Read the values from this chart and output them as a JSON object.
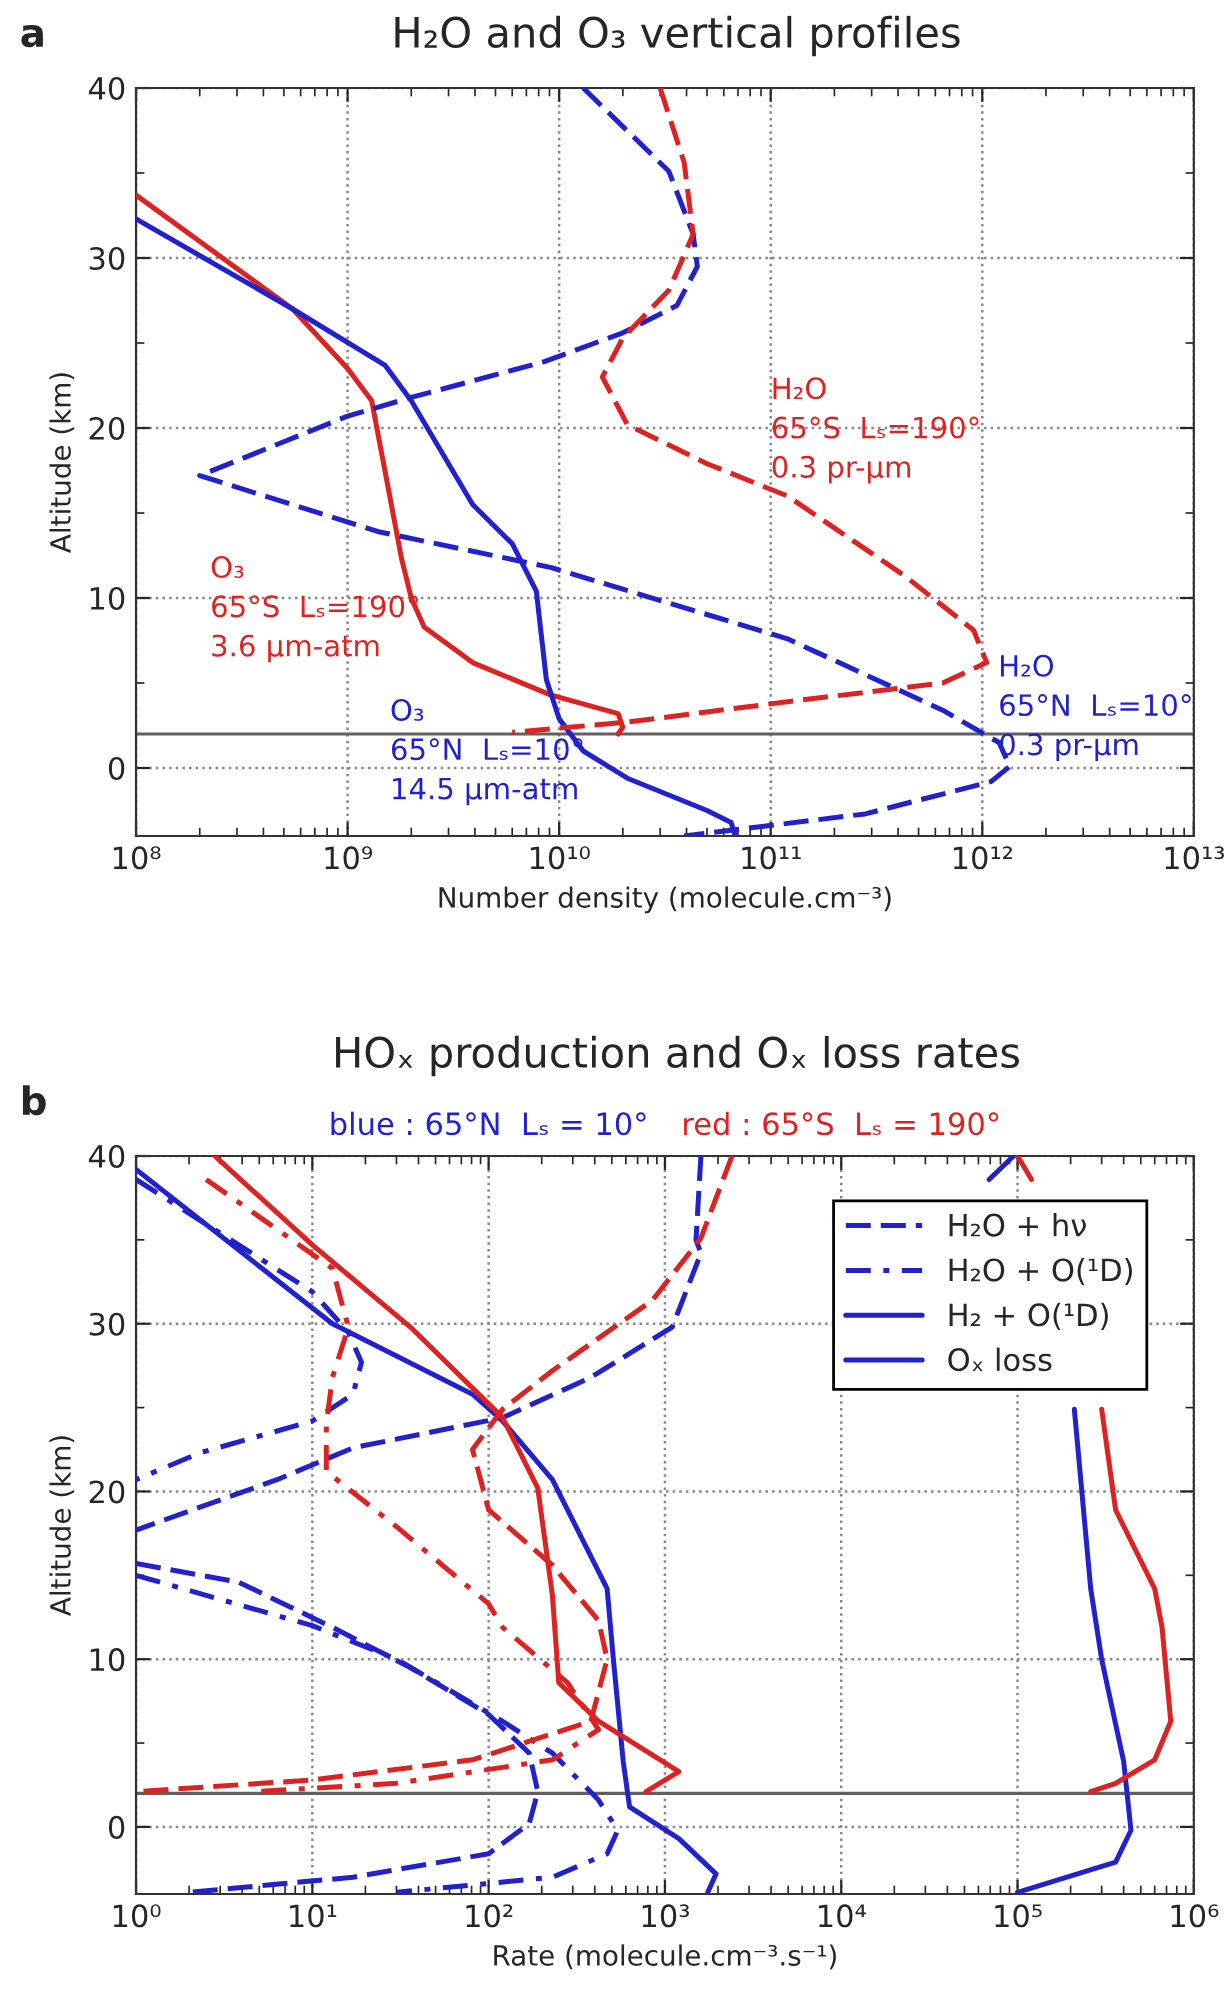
{
  "chart_data": [
    {
      "type": "line",
      "title": "H₂O and O₃ vertical profiles",
      "xlabel": "Number density (molecule.cm⁻³)",
      "ylabel": "Altitude (km)",
      "log": "x",
      "grid": true,
      "xlim": [
        100000000.0,
        10000000000000.0
      ],
      "xticks": [
        {
          "value": 100000000.0,
          "label": "10⁸"
        },
        {
          "value": 1000000000.0,
          "label": "10⁹"
        },
        {
          "value": 10000000000.0,
          "label": "10¹⁰"
        },
        {
          "value": 100000000000.0,
          "label": "10¹¹"
        },
        {
          "value": 1000000000000.0,
          "label": "10¹²"
        },
        {
          "value": 10000000000000.0,
          "label": "10¹³"
        }
      ],
      "ylim": [
        -4,
        40
      ],
      "yticks": [
        0,
        {
          "value": 5,
          "label": null
        },
        10,
        {
          "value": 15,
          "label": null
        },
        20,
        {
          "value": 25,
          "label": null
        },
        30,
        {
          "value": 35,
          "label": null
        },
        40
      ],
      "ref_lines": [
        {
          "axis": "y",
          "value": 2,
          "color": "#606060"
        }
      ],
      "series": [
        {
          "color": "#dd2222",
          "line_style": "solid",
          "x": [
            100000000.0,
            550000000.0,
            1000000000.0,
            1300000000.0,
            1800000000.0,
            2000000000.0,
            2300000000.0,
            3900000000.0,
            9100000000.0,
            19000000000.0,
            20000000000.0,
            19000000000.0
          ],
          "values": [
            33.7,
            27,
            23.5,
            21.6,
            12.3,
            10,
            8.3,
            6.2,
            4.3,
            3.2,
            2.4,
            2
          ]
        },
        {
          "color": "#2222cc",
          "line_style": "solid",
          "x": [
            100000000.0,
            550000000.0,
            1500000000.0,
            2000000000.0,
            3900000000.0,
            6000000000.0,
            7800000000.0,
            8700000000.0,
            10000000000.0,
            13000000000.0,
            21000000000.0,
            50000000000.0,
            65000000000.0,
            68000000000.0
          ],
          "values": [
            32.3,
            27,
            23.7,
            21.6,
            15.5,
            13.2,
            10.4,
            5.2,
            2.9,
            1.0,
            -0.6,
            -2.5,
            -3.2,
            -4
          ]
        },
        {
          "color": "#2222cc",
          "line_style": "dashed",
          "x": [
            13000000000.0,
            33000000000.0,
            43000000000.0,
            45000000000.0,
            36000000000.0,
            20000000000.0,
            8500000000.0,
            2000000000.0,
            1000000000.0,
            200000000.0,
            1400000000.0,
            9100000000.0,
            120000000000.0,
            650000000000.0,
            1200000000000.0,
            1350000000000.0,
            1100000000000.0,
            280000000000.0,
            39000000000.0
          ],
          "values": [
            40,
            35.1,
            31.4,
            29.5,
            27.2,
            25.6,
            23.9,
            21.8,
            20.7,
            17.2,
            13.9,
            11.8,
            7.6,
            3.4,
            1.5,
            0.1,
            -0.8,
            -2.7,
            -4
          ]
        },
        {
          "color": "#dd2222",
          "line_style": "dashed",
          "x": [
            30000000000.0,
            39000000000.0,
            43000000000.0,
            33000000000.0,
            20000000000.0,
            16000000000.0,
            21000000000.0,
            50000000000.0,
            120000000000.0,
            430000000000.0,
            910000000000.0,
            1050000000000.0,
            650000000000.0,
            120000000000.0,
            21000000000.0,
            6000000000.0
          ],
          "values": [
            40,
            35.6,
            31.4,
            28.1,
            25.3,
            23.0,
            20.2,
            17.9,
            16.0,
            11.3,
            8.1,
            6.2,
            5.0,
            3.9,
            2.7,
            2.1
          ]
        }
      ],
      "annotations": [
        "a",
        "H₂O\n65°S  Lₛ=190°\n0.3 pr-μm",
        "O₃\n65°S  Lₛ=190°\n3.6 μm-atm",
        "O₃\n65°N  Lₛ=10°\n14.5 μm-atm",
        "H₂O\n65°N  Lₛ=10°\n0.3 pr-μm"
      ]
    },
    {
      "type": "line",
      "title": "HOₓ production and Oₓ loss rates",
      "xlabel": "Rate (molecule.cm⁻³.s⁻¹)",
      "ylabel": "Altitude (km)",
      "log": "x",
      "grid": true,
      "legend": "top right",
      "xlim": [
        1,
        1000000.0
      ],
      "xticks": [
        {
          "value": 1,
          "label": "10⁰"
        },
        {
          "value": 10,
          "label": "10¹"
        },
        {
          "value": 100,
          "label": "10²"
        },
        {
          "value": 1000,
          "label": "10³"
        },
        {
          "value": 10000,
          "label": "10⁴"
        },
        {
          "value": 100000,
          "label": "10⁵"
        },
        {
          "value": 1000000,
          "label": "10⁶"
        }
      ],
      "ylim": [
        -4,
        40
      ],
      "yticks": [
        0,
        {
          "value": 5,
          "label": null
        },
        10,
        {
          "value": 15,
          "label": null
        },
        20,
        {
          "value": 25,
          "label": null
        },
        30,
        {
          "value": 35,
          "label": null
        },
        40
      ],
      "ref_lines": [
        {
          "axis": "y",
          "value": 2,
          "color": "#606060"
        }
      ],
      "series": [
        {
          "name": "H₂O + hν",
          "color": "#2222cc",
          "line_style": "dashed",
          "x": [
            1600,
            1500,
            1600,
            1100,
            380,
            120,
            17,
            6.3,
            1,
            null,
            1,
            3.8,
            13,
            36,
            100,
            170,
            190,
            170,
            100,
            17,
            2
          ],
          "values": [
            40,
            35,
            34.2,
            29.8,
            26.8,
            24.4,
            22.6,
            20.7,
            17.7,
            null,
            15.7,
            14.6,
            11.9,
            9.5,
            6.7,
            4.4,
            2.1,
            0.2,
            -1.6,
            -3.0,
            -3.9
          ]
        },
        {
          "name": "H₂O + O(¹D)",
          "color": "#2222cc",
          "line_style": "dashdot",
          "x": [
            1,
            10,
            16,
            19,
            17,
            10,
            2.3,
            1,
            null,
            1,
            10,
            30,
            120,
            230,
            420,
            540,
            470,
            230,
            30
          ],
          "values": [
            38.6,
            31.9,
            29.5,
            27.7,
            25.8,
            24.2,
            22.3,
            20.7,
            null,
            15.0,
            12.0,
            10.0,
            6.3,
            4.4,
            1.6,
            -0.2,
            -1.6,
            -3.0,
            -3.9
          ]
        },
        {
          "name": "H₂ + O(¹D)",
          "color": "#2222cc",
          "line_style": "solid",
          "x": [
            1,
            13,
            81,
            120,
            230,
            470,
            510,
            580,
            630,
            1200,
            1950,
            1750
          ],
          "values": [
            39.2,
            30,
            25.8,
            24.2,
            20.7,
            14.2,
            10,
            3.9,
            1.2,
            -0.7,
            -2.8,
            -3.9
          ]
        },
        {
          "name": "Oₓ loss",
          "color": "#2222cc",
          "line_style": "solid",
          "x": [
            95000,
            69000,
            null,
            210000,
            260000,
            300000,
            400000,
            440000,
            360000,
            100000
          ],
          "values": [
            40,
            38.6,
            null,
            24.9,
            14.2,
            10,
            3.9,
            -0.2,
            -2.1,
            -3.9
          ]
        },
        {
          "color": "#dd2222",
          "line_style": "dashed",
          "x": [
            2400,
            1600,
            850,
            230,
            120,
            81,
            100,
            230,
            420,
            470,
            380,
            81,
            10,
            1
          ],
          "values": [
            40,
            35.1,
            31.4,
            27.2,
            24.9,
            22.5,
            18.9,
            15.6,
            12.3,
            10,
            6.3,
            4.0,
            2.8,
            2.1
          ]
        },
        {
          "color": "#dd2222",
          "line_style": "dashdot",
          "x": [
            2.5,
            13,
            16,
            13,
            12,
            12,
            30,
            100,
            120,
            280,
            420,
            230,
            30,
            4.7
          ],
          "values": [
            38.6,
            33.3,
            29.8,
            26.8,
            24.0,
            21.2,
            17.9,
            13.3,
            11.9,
            8.6,
            5.8,
            4.0,
            2.6,
            2.1
          ]
        },
        {
          "color": "#dd2222",
          "line_style": "solid",
          "x": [
            2.8,
            10,
            36,
            120,
            190,
            230,
            250,
            420,
            1200,
            780
          ],
          "values": [
            40,
            34.7,
            29.8,
            24.4,
            20.2,
            13.8,
            8.6,
            6.3,
            3.3,
            2.1
          ]
        },
        {
          "color": "#dd2222",
          "line_style": "solid",
          "x": [
            100000,
            120000,
            null,
            300000,
            360000,
            600000,
            660000,
            740000,
            600000,
            360000,
            260000
          ],
          "values": [
            40,
            38.6,
            null,
            24.9,
            18.9,
            14.2,
            11.9,
            6.3,
            4.0,
            2.6,
            2.1
          ]
        }
      ],
      "annotations": [
        "b",
        "blue : 65°N  Lₛ = 10°",
        "red : 65°S  Lₛ = 190°"
      ]
    }
  ]
}
